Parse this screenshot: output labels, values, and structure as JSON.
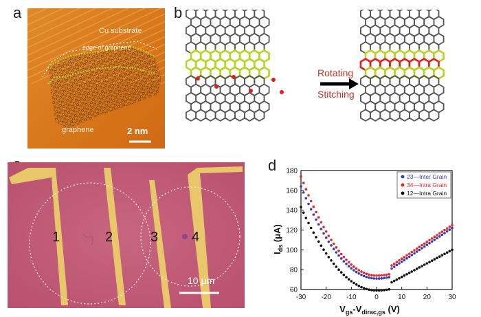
{
  "figure": {
    "panels": {
      "a": {
        "letter": "a",
        "labels": {
          "substrate": "Cu substrate",
          "edge": "edge of graphene",
          "graphene": "graphene",
          "scale": "2 nm"
        }
      },
      "b": {
        "letter": "b",
        "arrow_top": "Rotating",
        "arrow_bottom": "Stitching"
      },
      "c": {
        "letter": "c",
        "electrodes": [
          "1",
          "2",
          "3",
          "4"
        ],
        "scale": "10 μm"
      },
      "d": {
        "letter": "d"
      }
    },
    "colors": {
      "stm_background": "#d9781c",
      "carbon": "#555555",
      "boundary": "#b8d326",
      "stitched": "#e11d1d",
      "optical_background": "#c85d7e",
      "electrode": "#e8c66a"
    }
  },
  "chart_data": {
    "type": "scatter",
    "xlabel": "V gs-V dirac,gs (V)",
    "xlabel_parts": {
      "main": "V",
      "sub1": "gs",
      "dash": "-V",
      "sub2": "dirac,gs",
      "unit": " (V)"
    },
    "ylabel_parts": {
      "main": "I",
      "sub": "ds",
      "unit": " (μA)"
    },
    "xlim": [
      -30,
      30
    ],
    "ylim": [
      60,
      180
    ],
    "xticks": [
      -30,
      -20,
      -10,
      0,
      10,
      20,
      30
    ],
    "yticks": [
      60,
      80,
      100,
      120,
      140,
      160,
      180
    ],
    "legend_position": "top-right",
    "series": [
      {
        "name": "23—Inter Grain",
        "color": "#3b3bb0",
        "minimum": 71,
        "left": 164,
        "right": 122
      },
      {
        "name": "34—Intra Grain",
        "color": "#e0282e",
        "minimum": 74,
        "left": 174,
        "right": 125
      },
      {
        "name": "12—Intra Grain",
        "color": "#111111",
        "minimum": 59,
        "left": 143,
        "right": 100
      }
    ]
  }
}
